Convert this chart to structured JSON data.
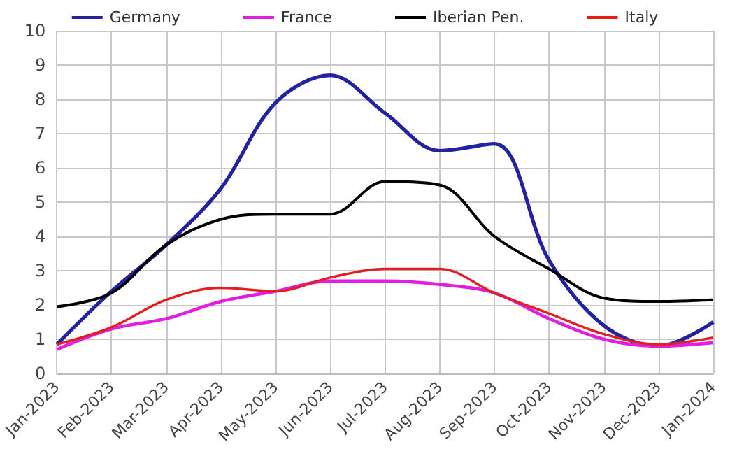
{
  "chart_data": {
    "type": "line",
    "categories": [
      "Jan-2023",
      "Feb-2023",
      "Mar-2023",
      "Apr-2023",
      "May-2023",
      "Jun-2023",
      "Jul-2023",
      "Aug-2023",
      "Sep-2023",
      "Oct-2023",
      "Nov-2023",
      "Dec-2023",
      "Jan-2024"
    ],
    "series": [
      {
        "name": "Germany",
        "color": "#2323a0",
        "values": [
          0.85,
          2.4,
          3.75,
          5.4,
          7.9,
          8.7,
          7.6,
          6.5,
          6.7,
          3.3,
          1.4,
          0.8,
          1.5
        ]
      },
      {
        "name": "France",
        "color": "#e020e0",
        "values": [
          0.7,
          1.3,
          1.6,
          2.1,
          2.4,
          2.7,
          2.7,
          2.6,
          2.35,
          1.6,
          1.0,
          0.8,
          0.9
        ]
      },
      {
        "name": "Iberian Pen.",
        "color": "#000000",
        "values": [
          1.95,
          2.35,
          3.75,
          4.5,
          4.65,
          4.65,
          5.6,
          5.5,
          4.0,
          3.05,
          2.2,
          2.1,
          2.15
        ]
      },
      {
        "name": "Italy",
        "color": "#e02020",
        "values": [
          0.85,
          1.35,
          2.15,
          2.5,
          2.4,
          2.8,
          3.05,
          3.05,
          2.35,
          1.75,
          1.15,
          0.85,
          1.05
        ]
      }
    ],
    "ylim": [
      0,
      10
    ],
    "yticks": [
      0,
      1,
      2,
      3,
      4,
      5,
      6,
      7,
      8,
      9,
      10
    ],
    "grid": true,
    "legend": "top",
    "marker": "none",
    "line_style": "solid"
  }
}
